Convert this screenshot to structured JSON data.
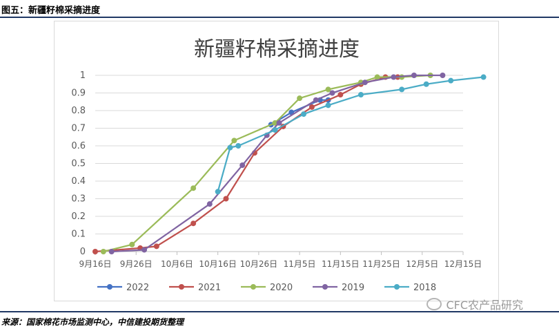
{
  "figure": {
    "caption": "图五：新疆籽棉采摘进度",
    "source": "来源：国家棉花市场监测中心，中信建投期货整理",
    "watermark": "CFC农产品研究"
  },
  "colors": {
    "header_rule": "#1f3864",
    "gridline": "#d9d9d9",
    "axis_text": "#595959"
  },
  "chart_data": {
    "type": "line",
    "title": "新疆籽棉采摘进度",
    "xlabel": "",
    "ylabel": "",
    "x_ticks": [
      "9月16日",
      "9月26日",
      "10月6日",
      "10月16日",
      "10月26日",
      "11月5日",
      "11月15日",
      "11月25日",
      "12月5日",
      "12月15日"
    ],
    "x_range": [
      "9月16日",
      "12月15日"
    ],
    "y_ticks": [
      "0",
      "0.1",
      "0.2",
      "0.3",
      "0.4",
      "0.5",
      "0.6",
      "0.7",
      "0.8",
      "0.9",
      "1"
    ],
    "ylim": [
      0,
      1
    ],
    "grid": true,
    "legend_position": "bottom",
    "series": [
      {
        "name": "2022",
        "color": "#4472c4",
        "points": [
          [
            "10月29日",
            0.72
          ],
          [
            "11月3日",
            0.79
          ],
          [
            "11月10日",
            0.86
          ],
          [
            "11月12日",
            0.86
          ]
        ]
      },
      {
        "name": "2021",
        "color": "#c0504d",
        "points": [
          [
            "9月16日",
            0.0
          ],
          [
            "9月27日",
            0.02
          ],
          [
            "10月1日",
            0.03
          ],
          [
            "10月10日",
            0.16
          ],
          [
            "10月18日",
            0.3
          ],
          [
            "10月25日",
            0.56
          ],
          [
            "11月1日",
            0.71
          ],
          [
            "11月8日",
            0.82
          ],
          [
            "11月15日",
            0.89
          ],
          [
            "11月20日",
            0.95
          ],
          [
            "11月26日",
            0.99
          ],
          [
            "11月29日",
            0.99
          ]
        ]
      },
      {
        "name": "2020",
        "color": "#9bbb59",
        "points": [
          [
            "9月18日",
            0.0
          ],
          [
            "9月25日",
            0.04
          ],
          [
            "10月10日",
            0.36
          ],
          [
            "10月20日",
            0.63
          ],
          [
            "10月30日",
            0.73
          ],
          [
            "11月5日",
            0.87
          ],
          [
            "11月12日",
            0.92
          ],
          [
            "11月20日",
            0.96
          ],
          [
            "11月24日",
            0.99
          ],
          [
            "11月30日",
            0.99
          ],
          [
            "12月7日",
            1.0
          ]
        ]
      },
      {
        "name": "2019",
        "color": "#8064a2",
        "points": [
          [
            "9月20日",
            0.0
          ],
          [
            "9月28日",
            0.01
          ],
          [
            "10月14日",
            0.27
          ],
          [
            "10月22日",
            0.49
          ],
          [
            "10月28日",
            0.66
          ],
          [
            "10月31日",
            0.73
          ],
          [
            "11月9日",
            0.86
          ],
          [
            "11月13日",
            0.9
          ],
          [
            "11月21日",
            0.96
          ],
          [
            "11月28日",
            0.99
          ],
          [
            "12月3日",
            1.0
          ],
          [
            "12月10日",
            1.0
          ]
        ]
      },
      {
        "name": "2018",
        "color": "#4bacc6",
        "points": [
          [
            "10月16日",
            0.34
          ],
          [
            "10月19日",
            0.59
          ],
          [
            "10月21日",
            0.6
          ],
          [
            "10月30日",
            0.69
          ],
          [
            "11月6日",
            0.78
          ],
          [
            "11月12日",
            0.83
          ],
          [
            "11月20日",
            0.89
          ],
          [
            "11月30日",
            0.92
          ],
          [
            "12月6日",
            0.95
          ],
          [
            "12月12日",
            0.97
          ],
          [
            "12月20日",
            0.99
          ]
        ]
      }
    ]
  }
}
